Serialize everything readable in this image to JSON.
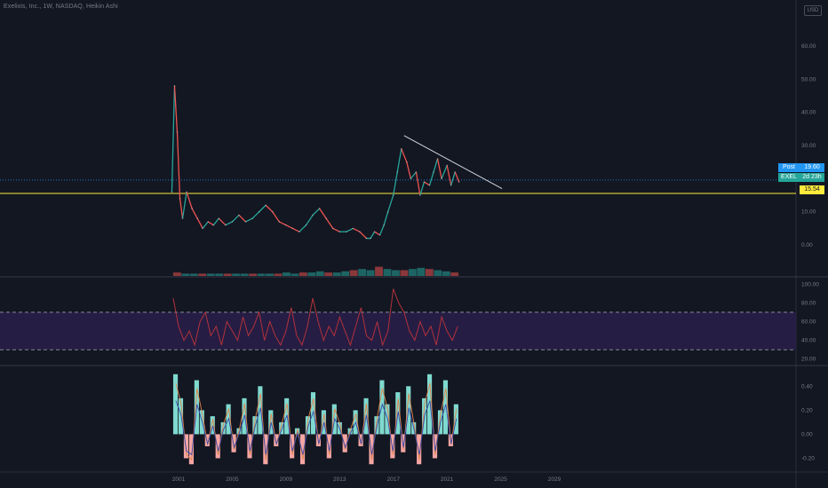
{
  "header": {
    "title": "Exelixis, Inc., 1W, NASDAQ, Heikin Ashi",
    "currency": "USD"
  },
  "colors": {
    "background": "#131722",
    "text": "#787b86",
    "up": "#26a69a",
    "down": "#ef5350",
    "rsi_line": "#b2323b",
    "rsi_band": "#2a1e4a",
    "trendline": "#d1d4dc",
    "support": "#ffeb3b",
    "post_price": "#2196f3",
    "ticker_tag": "#26a69a",
    "teal_hist": "#7fd9cf",
    "pink_hist": "#f4a6a3",
    "signal_blue": "#3949ab",
    "signal_orange": "#e0824a"
  },
  "price_tags": {
    "post_label": "Post",
    "post_value": "19.60",
    "ticker_label": "EXEL",
    "ticker_value": "2d 23h",
    "support_value": "15.54"
  },
  "chart_data": [
    {
      "type": "line",
      "name": "price",
      "x_ticks": [
        "2001",
        "2005",
        "2009",
        "2013",
        "2017",
        "2021",
        "2025",
        "2029"
      ],
      "y_ticks": [
        "60.00",
        "50.00",
        "40.00",
        "30.00",
        "20.00",
        "10.00",
        "0.00"
      ],
      "ylim": [
        -8,
        68
      ],
      "x": [
        2000.5,
        2000.7,
        2000.9,
        2001.1,
        2001.3,
        2001.6,
        2002.0,
        2002.4,
        2002.8,
        2003.2,
        2003.6,
        2004.0,
        2004.5,
        2005.0,
        2005.5,
        2006.0,
        2006.5,
        2007.0,
        2007.5,
        2008.0,
        2008.5,
        2009.0,
        2009.5,
        2010.0,
        2010.5,
        2011.0,
        2011.5,
        2012.0,
        2012.5,
        2013.0,
        2013.5,
        2014.0,
        2014.5,
        2015.0,
        2015.3,
        2015.6,
        2016.0,
        2016.3,
        2016.6,
        2017.0,
        2017.3,
        2017.6,
        2018.0,
        2018.3,
        2018.7,
        2019.0,
        2019.3,
        2019.7,
        2020.0,
        2020.3,
        2020.6,
        2021.0,
        2021.3,
        2021.6,
        2021.9
      ],
      "y": [
        16,
        48,
        34,
        14,
        8,
        16,
        11,
        8,
        5,
        7,
        6,
        8,
        6,
        7,
        9,
        7,
        8,
        10,
        12,
        10,
        7,
        6,
        5,
        4,
        6,
        9,
        11,
        8,
        5,
        4,
        4,
        5,
        4,
        2,
        2,
        4,
        3,
        6,
        10,
        15,
        22,
        29,
        25,
        20,
        22,
        15,
        19,
        18,
        22,
        26,
        20,
        24,
        18,
        22,
        19
      ],
      "trendline": {
        "x": [
          2017.8,
          2025.1
        ],
        "y": [
          33,
          17
        ]
      },
      "support_level": 15.54,
      "post_price": 19.6
    },
    {
      "type": "bar",
      "name": "volume",
      "values": [
        3,
        2,
        2,
        2,
        2,
        2,
        2,
        2,
        2,
        2,
        2,
        2,
        2,
        3,
        2,
        3,
        3,
        4,
        3,
        3,
        4,
        5,
        6,
        5,
        8,
        6,
        5,
        5,
        6,
        7,
        6,
        5,
        4,
        3
      ]
    },
    {
      "type": "line",
      "name": "rsi",
      "y_ticks": [
        "100.00",
        "80.00",
        "60.00",
        "40.00",
        "20.00"
      ],
      "ylim": [
        15,
        105
      ],
      "band": [
        30,
        70
      ],
      "x": [
        2000.6,
        2001.0,
        2001.4,
        2001.8,
        2002.2,
        2002.6,
        2003.0,
        2003.4,
        2003.8,
        2004.2,
        2004.6,
        2005.0,
        2005.4,
        2005.8,
        2006.2,
        2006.6,
        2007.0,
        2007.4,
        2007.8,
        2008.2,
        2008.6,
        2009.0,
        2009.4,
        2009.8,
        2010.2,
        2010.6,
        2011.0,
        2011.4,
        2011.8,
        2012.2,
        2012.6,
        2013.0,
        2013.4,
        2013.8,
        2014.2,
        2014.6,
        2015.0,
        2015.4,
        2015.8,
        2016.2,
        2016.6,
        2017.0,
        2017.4,
        2017.8,
        2018.2,
        2018.6,
        2019.0,
        2019.4,
        2019.8,
        2020.2,
        2020.6,
        2021.0,
        2021.4,
        2021.8
      ],
      "y": [
        85,
        55,
        40,
        50,
        35,
        60,
        70,
        45,
        55,
        35,
        60,
        50,
        40,
        65,
        45,
        55,
        70,
        40,
        60,
        45,
        35,
        50,
        75,
        45,
        35,
        55,
        85,
        60,
        40,
        55,
        45,
        65,
        50,
        35,
        55,
        75,
        45,
        40,
        60,
        35,
        50,
        95,
        80,
        70,
        50,
        40,
        60,
        45,
        55,
        35,
        65,
        50,
        40,
        55
      ]
    },
    {
      "type": "bar",
      "name": "momentum_histogram",
      "y_ticks": [
        "0.40",
        "0.20",
        "0.00",
        "-0.20"
      ],
      "ylim": [
        -0.3,
        0.55
      ],
      "values": [
        0.5,
        0.3,
        -0.2,
        -0.25,
        0.45,
        0.2,
        -0.1,
        0.15,
        -0.2,
        0.1,
        0.25,
        -0.15,
        0.05,
        0.3,
        -0.2,
        0.15,
        0.4,
        -0.25,
        0.2,
        -0.1,
        0.1,
        0.3,
        -0.2,
        0.05,
        -0.25,
        0.15,
        0.35,
        -0.1,
        0.2,
        -0.2,
        0.25,
        0.1,
        -0.15,
        0.05,
        0.2,
        -0.1,
        0.3,
        -0.25,
        0.15,
        0.45,
        0.25,
        -0.2,
        0.35,
        -0.15,
        0.4,
        0.1,
        -0.25,
        0.3,
        0.5,
        -0.2,
        0.2,
        0.45,
        -0.1,
        0.25
      ]
    }
  ]
}
